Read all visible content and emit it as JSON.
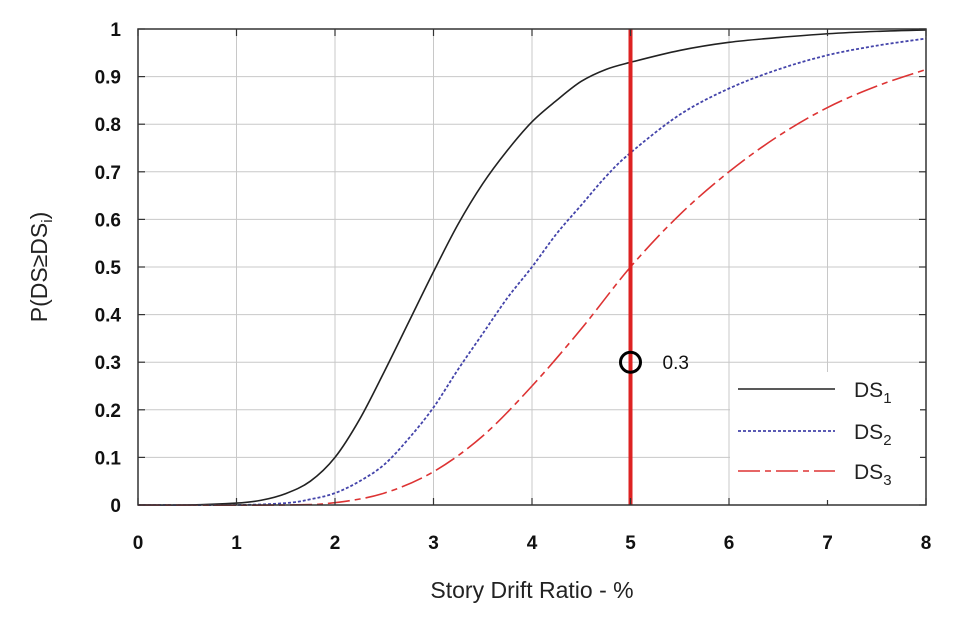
{
  "chart_data": {
    "type": "line",
    "xlabel": "Story Drift Ratio - %",
    "ylabel": "P(DS≥DSi)",
    "xlim": [
      0,
      8
    ],
    "ylim": [
      0,
      1
    ],
    "grid": true,
    "xticks": [
      0,
      1,
      2,
      3,
      4,
      5,
      6,
      7,
      8
    ],
    "yticks": [
      0,
      0.1,
      0.2,
      0.3,
      0.4,
      0.5,
      0.6,
      0.7,
      0.8,
      0.9,
      1
    ],
    "xtick_labels": [
      "0",
      "1",
      "2",
      "3",
      "4",
      "5",
      "6",
      "7",
      "8"
    ],
    "ytick_labels": [
      "0",
      "0.1",
      "0.2",
      "0.3",
      "0.4",
      "0.5",
      "0.6",
      "0.7",
      "0.8",
      "0.9",
      "1"
    ],
    "legend_position": "bottom-right",
    "series": [
      {
        "name": "DS1",
        "label_base": "DS",
        "label_sub": "1",
        "color": "#222222",
        "style": "solid",
        "x": [
          0,
          0.5,
          1,
          1.25,
          1.5,
          1.75,
          2,
          2.25,
          2.5,
          2.75,
          3,
          3.25,
          3.5,
          3.75,
          4,
          4.25,
          4.5,
          4.75,
          5,
          5.5,
          6,
          6.5,
          7,
          7.5,
          8
        ],
        "y": [
          0,
          0,
          0.004,
          0.01,
          0.024,
          0.05,
          0.1,
          0.18,
          0.28,
          0.385,
          0.49,
          0.59,
          0.675,
          0.745,
          0.805,
          0.85,
          0.89,
          0.915,
          0.93,
          0.955,
          0.972,
          0.982,
          0.99,
          0.995,
          0.998
        ]
      },
      {
        "name": "DS2",
        "label_base": "DS",
        "label_sub": "2",
        "color": "#4444aa",
        "style": "dotted",
        "x": [
          0,
          1,
          1.5,
          1.75,
          2,
          2.25,
          2.5,
          2.75,
          3,
          3.25,
          3.5,
          3.75,
          4,
          4.25,
          4.5,
          4.75,
          5,
          5.5,
          6,
          6.5,
          7,
          7.5,
          8
        ],
        "y": [
          0,
          0,
          0.004,
          0.012,
          0.025,
          0.05,
          0.085,
          0.14,
          0.205,
          0.285,
          0.36,
          0.435,
          0.5,
          0.57,
          0.63,
          0.69,
          0.74,
          0.82,
          0.875,
          0.915,
          0.945,
          0.965,
          0.98
        ]
      },
      {
        "name": "DS3",
        "label_base": "DS",
        "label_sub": "3",
        "color": "#dd3333",
        "style": "longdash",
        "x": [
          0,
          1.5,
          2,
          2.5,
          3,
          3.5,
          4,
          4.5,
          5,
          5.5,
          6,
          6.5,
          7,
          7.5,
          8
        ],
        "y": [
          0,
          0,
          0.005,
          0.025,
          0.07,
          0.145,
          0.25,
          0.37,
          0.5,
          0.61,
          0.7,
          0.775,
          0.835,
          0.88,
          0.915
        ]
      }
    ],
    "reference_line": {
      "x": 5,
      "color": "#dd2222"
    },
    "annotation": {
      "x": 5,
      "y": 0.3,
      "label": "0.3"
    }
  }
}
